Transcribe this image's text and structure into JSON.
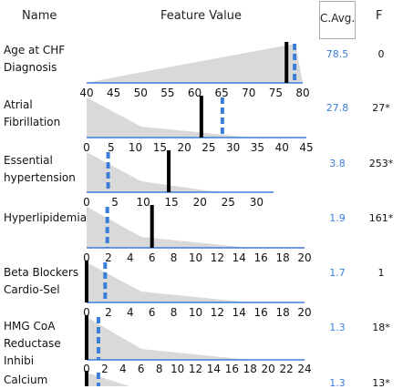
{
  "header": {
    "name": "Name",
    "feature_value": "Feature Value",
    "cavg": "C.Avg.",
    "f": "F"
  },
  "rows": [
    {
      "name": "Age at CHF Diagnosis",
      "cavg": "78.5",
      "f": "0",
      "axis_min": 40,
      "axis_max": 80,
      "ticks": [
        "40",
        "45",
        "50",
        "55",
        "60",
        "65",
        "70",
        "75",
        "80"
      ],
      "tick_values": [
        40,
        45,
        50,
        55,
        60,
        65,
        70,
        75,
        80
      ],
      "patient_value": 77,
      "avg_value": 78.5,
      "dist": {
        "type": "rising"
      }
    },
    {
      "name": "Atrial Fibrillation",
      "cavg": "27.8",
      "f": "27*",
      "axis_min": 0,
      "axis_max": 45,
      "ticks": [
        "0",
        "5",
        "10",
        "15",
        "20",
        "25",
        "30",
        "35",
        "40",
        "45"
      ],
      "tick_values": [
        0,
        5,
        10,
        15,
        20,
        25,
        30,
        35,
        40,
        45
      ],
      "patient_value": 23.5,
      "avg_value": 27.8,
      "dist": {
        "type": "falling"
      }
    },
    {
      "name": "Essential hypertension",
      "cavg": "3.8",
      "f": "253*",
      "axis_min": 0,
      "axis_max": 33,
      "ticks": [
        "0",
        "5",
        "10",
        "15",
        "20",
        "25",
        "30"
      ],
      "tick_values": [
        0,
        5,
        10,
        15,
        20,
        25,
        30
      ],
      "patient_value": 14.5,
      "avg_value": 3.8,
      "dist": {
        "type": "falling"
      }
    },
    {
      "name": "Hyperlipidemia",
      "cavg": "1.9",
      "f": "161*",
      "axis_min": 0,
      "axis_max": 20,
      "ticks": [
        "0",
        "2",
        "4",
        "6",
        "8",
        "10",
        "12",
        "14",
        "16",
        "18",
        "20"
      ],
      "tick_values": [
        0,
        2,
        4,
        6,
        8,
        10,
        12,
        14,
        16,
        18,
        20
      ],
      "patient_value": 6,
      "avg_value": 1.9,
      "dist": {
        "type": "falling"
      }
    },
    {
      "name": "Beta Blockers Cardio-Sel",
      "cavg": "1.7",
      "f": "1",
      "axis_min": 0,
      "axis_max": 20,
      "ticks": [
        "0",
        "2",
        "4",
        "6",
        "8",
        "10",
        "12",
        "14",
        "16",
        "18",
        "20"
      ],
      "tick_values": [
        0,
        2,
        4,
        6,
        8,
        10,
        12,
        14,
        16,
        18,
        20
      ],
      "patient_value": 0,
      "avg_value": 1.7,
      "dist": {
        "type": "falling"
      }
    },
    {
      "name": "HMG CoA Reductase Inhibi",
      "cavg": "1.3",
      "f": "18*",
      "axis_min": 0,
      "axis_max": 24,
      "ticks": [
        "0",
        "2",
        "4",
        "6",
        "8",
        "10",
        "12",
        "14",
        "16",
        "18",
        "20",
        "22",
        "24"
      ],
      "tick_values": [
        0,
        2,
        4,
        6,
        8,
        10,
        12,
        14,
        16,
        18,
        20,
        22,
        24
      ],
      "patient_value": 0,
      "avg_value": 1.3,
      "dist": {
        "type": "falling"
      }
    },
    {
      "name": "Calcium",
      "cavg": "1.3",
      "f": "13*",
      "axis_min": 0,
      "axis_max": 24,
      "ticks": [],
      "tick_values": [],
      "patient_value": 0,
      "avg_value": 1.3,
      "dist": {
        "type": "falling"
      }
    }
  ],
  "colors": {
    "patient_marker": "#000000",
    "average_marker": "#3b7dd8",
    "distribution": "#d9d9d9",
    "axis": "#3b7dd8"
  }
}
